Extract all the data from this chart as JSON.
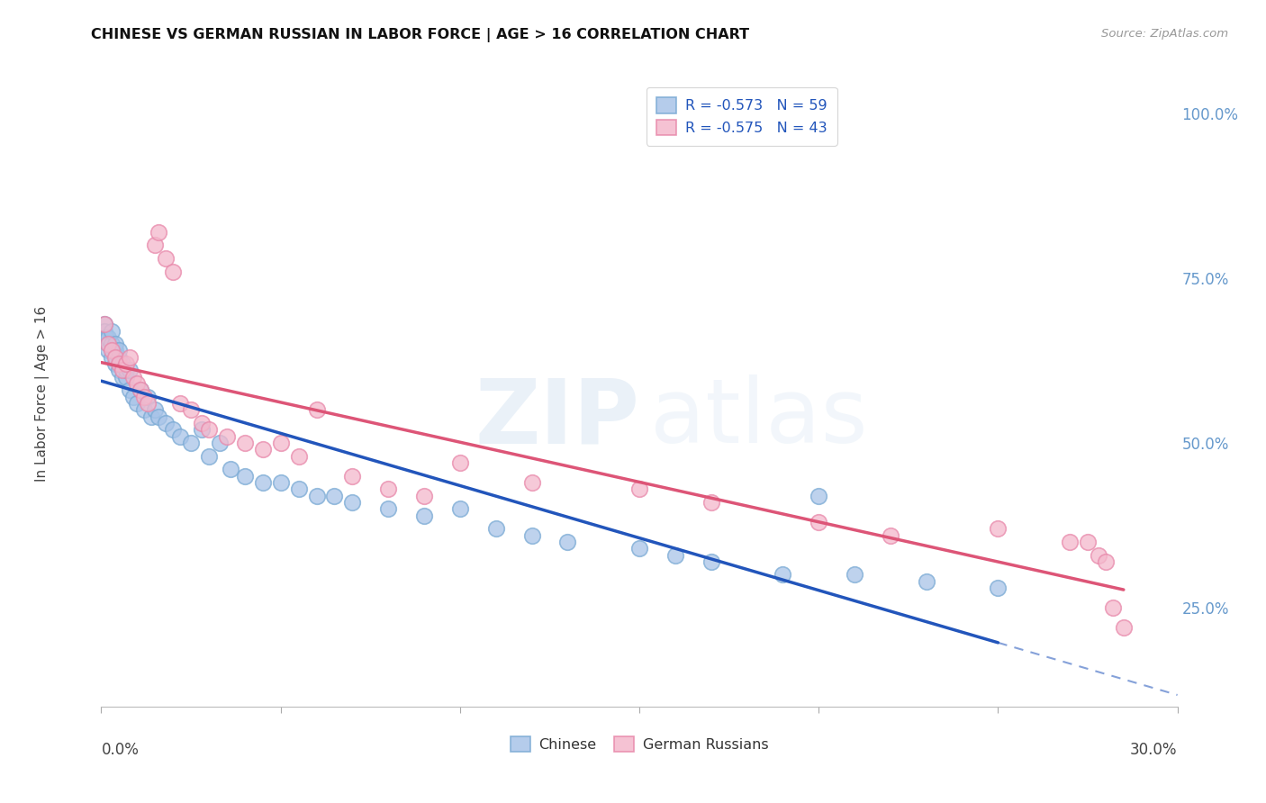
{
  "title": "CHINESE VS GERMAN RUSSIAN IN LABOR FORCE | AGE > 16 CORRELATION CHART",
  "source": "Source: ZipAtlas.com",
  "ylabel": "In Labor Force | Age > 16",
  "legend_chinese_r": "R = -0.573",
  "legend_chinese_n": "N = 59",
  "legend_german_r": "R = -0.575",
  "legend_german_n": "N = 43",
  "legend_label_chinese": "Chinese",
  "legend_label_german": "German Russians",
  "chinese_color": "#a8c4e8",
  "chinese_edge_color": "#7aaad4",
  "german_color": "#f4b8cc",
  "german_edge_color": "#e888aa",
  "chinese_line_color": "#2255bb",
  "german_line_color": "#dd5577",
  "background_color": "#ffffff",
  "grid_color": "#c8d4e8",
  "right_axis_color": "#6699cc",
  "xlim_min": 0.0,
  "xlim_max": 0.3,
  "ylim_min": 0.1,
  "ylim_max": 1.05,
  "ytick_positions": [
    0.25,
    0.5,
    0.75,
    1.0
  ],
  "ytick_labels": [
    "25.0%",
    "50.0%",
    "75.0%",
    "100.0%"
  ],
  "chinese_x": [
    0.0008,
    0.001,
    0.0012,
    0.0015,
    0.002,
    0.002,
    0.002,
    0.003,
    0.003,
    0.003,
    0.004,
    0.004,
    0.004,
    0.005,
    0.005,
    0.005,
    0.006,
    0.006,
    0.007,
    0.007,
    0.008,
    0.008,
    0.009,
    0.01,
    0.011,
    0.012,
    0.013,
    0.014,
    0.015,
    0.016,
    0.018,
    0.02,
    0.022,
    0.025,
    0.028,
    0.03,
    0.033,
    0.036,
    0.04,
    0.045,
    0.05,
    0.055,
    0.06,
    0.065,
    0.07,
    0.08,
    0.09,
    0.1,
    0.11,
    0.12,
    0.13,
    0.15,
    0.16,
    0.17,
    0.19,
    0.2,
    0.21,
    0.23,
    0.25
  ],
  "chinese_y": [
    0.68,
    0.67,
    0.66,
    0.66,
    0.65,
    0.64,
    0.66,
    0.63,
    0.65,
    0.67,
    0.62,
    0.64,
    0.65,
    0.61,
    0.63,
    0.64,
    0.6,
    0.62,
    0.6,
    0.61,
    0.58,
    0.61,
    0.57,
    0.56,
    0.58,
    0.55,
    0.57,
    0.54,
    0.55,
    0.54,
    0.53,
    0.52,
    0.51,
    0.5,
    0.52,
    0.48,
    0.5,
    0.46,
    0.45,
    0.44,
    0.44,
    0.43,
    0.42,
    0.42,
    0.41,
    0.4,
    0.39,
    0.4,
    0.37,
    0.36,
    0.35,
    0.34,
    0.33,
    0.32,
    0.3,
    0.42,
    0.3,
    0.29,
    0.28
  ],
  "german_x": [
    0.001,
    0.002,
    0.003,
    0.004,
    0.005,
    0.006,
    0.007,
    0.008,
    0.009,
    0.01,
    0.011,
    0.012,
    0.013,
    0.015,
    0.016,
    0.018,
    0.02,
    0.022,
    0.025,
    0.028,
    0.03,
    0.035,
    0.04,
    0.045,
    0.05,
    0.055,
    0.06,
    0.07,
    0.08,
    0.09,
    0.1,
    0.12,
    0.15,
    0.17,
    0.2,
    0.22,
    0.25,
    0.27,
    0.275,
    0.278,
    0.28,
    0.282,
    0.285
  ],
  "german_y": [
    0.68,
    0.65,
    0.64,
    0.63,
    0.62,
    0.61,
    0.62,
    0.63,
    0.6,
    0.59,
    0.58,
    0.57,
    0.56,
    0.8,
    0.82,
    0.78,
    0.76,
    0.56,
    0.55,
    0.53,
    0.52,
    0.51,
    0.5,
    0.49,
    0.5,
    0.48,
    0.55,
    0.45,
    0.43,
    0.42,
    0.47,
    0.44,
    0.43,
    0.41,
    0.38,
    0.36,
    0.37,
    0.35,
    0.35,
    0.33,
    0.32,
    0.25,
    0.22
  ]
}
